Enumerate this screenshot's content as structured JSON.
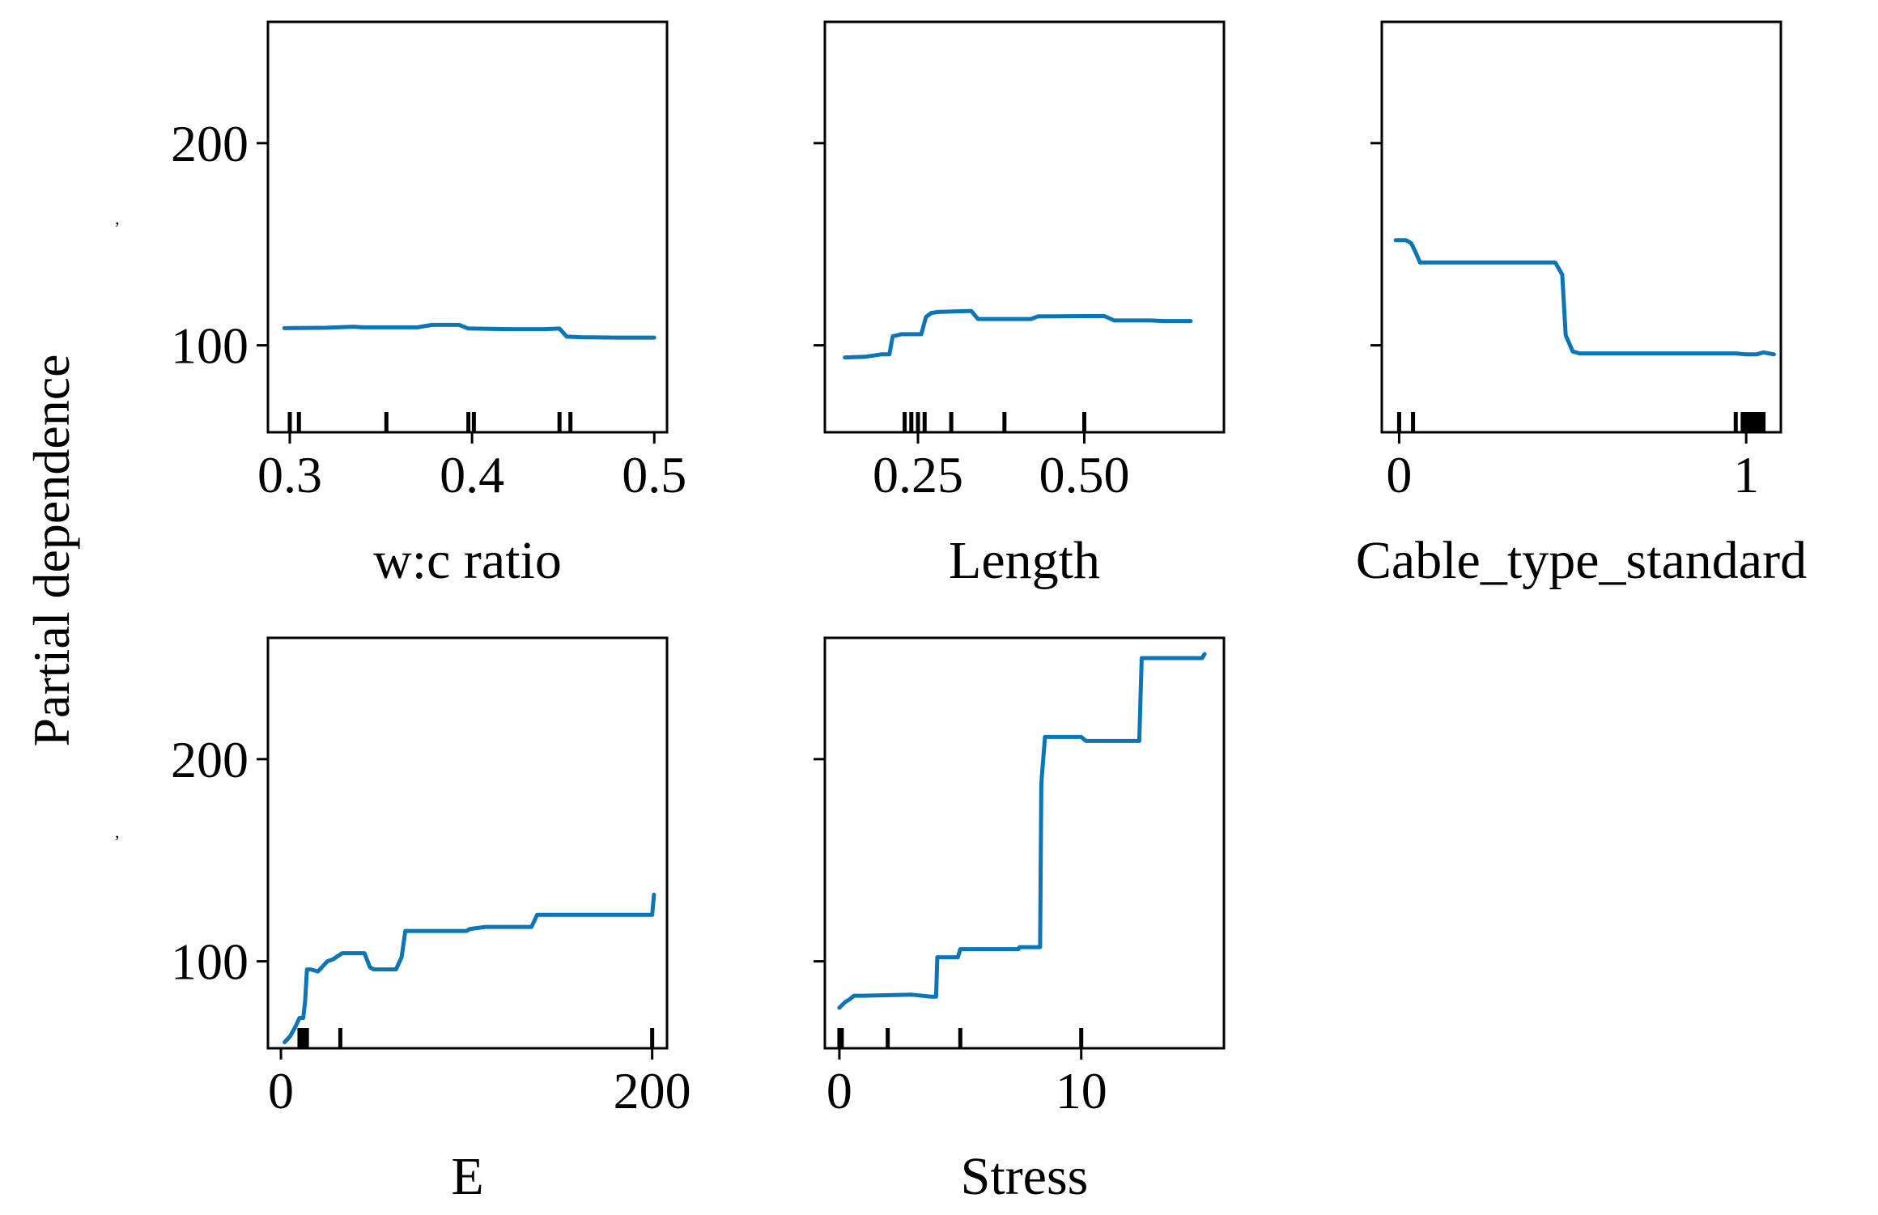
{
  "figure": {
    "ylabel": "Partial dependence",
    "line_color": "#0b75b5",
    "rug_color": "#000000"
  },
  "chart_data": [
    {
      "type": "line",
      "xlabel": "w:c ratio",
      "ylabel": "Partial dependence",
      "xlim": [
        0.288,
        0.507
      ],
      "ylim": [
        57,
        260
      ],
      "xticks": [
        0.3,
        0.4,
        0.5
      ],
      "xtick_labels": [
        "0.3",
        "0.4",
        "0.5"
      ],
      "yticks": [
        100,
        200
      ],
      "ytick_labels": [
        "100",
        "200"
      ],
      "show_yticklabels": true,
      "deciles": [
        0.3,
        0.305,
        0.353,
        0.398,
        0.401,
        0.448,
        0.454
      ],
      "series": [
        {
          "name": "pd",
          "x": [
            0.297,
            0.32,
            0.335,
            0.34,
            0.37,
            0.378,
            0.393,
            0.398,
            0.4,
            0.42,
            0.44,
            0.448,
            0.452,
            0.46,
            0.48,
            0.5
          ],
          "y": [
            108.5,
            108.7,
            109.2,
            108.9,
            108.9,
            110.1,
            110.1,
            108.3,
            108.3,
            108.0,
            108.0,
            108.3,
            104.3,
            104.0,
            103.8,
            103.8
          ]
        }
      ]
    },
    {
      "type": "line",
      "xlabel": "Length",
      "ylabel": "",
      "xlim": [
        0.11,
        0.71
      ],
      "ylim": [
        57,
        260
      ],
      "xticks": [
        0.25,
        0.5
      ],
      "xtick_labels": [
        "0.25",
        "0.50"
      ],
      "yticks": [
        100,
        200
      ],
      "ytick_labels": [
        "100",
        "200"
      ],
      "show_yticklabels": false,
      "deciles": [
        0.23,
        0.24,
        0.25,
        0.26,
        0.3,
        0.38,
        0.5
      ],
      "series": [
        {
          "name": "pd",
          "x": [
            0.14,
            0.17,
            0.195,
            0.207,
            0.212,
            0.225,
            0.255,
            0.262,
            0.27,
            0.28,
            0.33,
            0.34,
            0.42,
            0.43,
            0.53,
            0.545,
            0.6,
            0.62,
            0.66
          ],
          "y": [
            94,
            94.3,
            95.5,
            95.5,
            104.5,
            105.5,
            105.5,
            114,
            116,
            116.5,
            117,
            113,
            113,
            114.3,
            114.5,
            112.3,
            112.3,
            112,
            112
          ]
        }
      ]
    },
    {
      "type": "line",
      "xlabel": "Cable_type_standard",
      "ylabel": "",
      "xlim": [
        -0.05,
        1.1
      ],
      "ylim": [
        57,
        260
      ],
      "xticks": [
        0,
        1
      ],
      "xtick_labels": [
        "0",
        "1"
      ],
      "yticks": [
        100,
        200
      ],
      "ytick_labels": [
        "100",
        "200"
      ],
      "show_yticklabels": false,
      "deciles": [
        0.0,
        0.04,
        0.97,
        0.99,
        1.0,
        1.01,
        1.02,
        1.03,
        1.04,
        1.05
      ],
      "series": [
        {
          "name": "pd",
          "x": [
            -0.01,
            0.02,
            0.035,
            0.05,
            0.06,
            0.45,
            0.47,
            0.48,
            0.5,
            0.52,
            0.97,
            1.0,
            1.03,
            1.05,
            1.08
          ],
          "y": [
            152,
            152,
            150.5,
            145,
            141,
            141,
            135,
            105,
            97,
            96,
            96,
            95.5,
            95.5,
            96.5,
            95.5
          ]
        }
      ]
    },
    {
      "type": "line",
      "xlabel": "E",
      "ylabel": "Partial dependence",
      "xlim": [
        -7,
        208
      ],
      "ylim": [
        57,
        260
      ],
      "xticks": [
        0,
        200
      ],
      "xtick_labels": [
        "0",
        "200"
      ],
      "yticks": [
        100,
        200
      ],
      "ytick_labels": [
        "100",
        "200"
      ],
      "show_yticklabels": true,
      "deciles": [
        10,
        11,
        12,
        13,
        14,
        32,
        200
      ],
      "series": [
        {
          "name": "pd",
          "x": [
            2,
            5,
            8,
            10,
            12,
            13,
            14,
            16,
            20,
            25,
            28,
            33,
            45,
            48,
            50,
            62,
            65,
            67,
            100,
            102,
            110,
            135,
            138,
            200,
            201
          ],
          "y": [
            60,
            63,
            68,
            72,
            72,
            80,
            96,
            96,
            95,
            100,
            101,
            104,
            104,
            97,
            96,
            96,
            102,
            115,
            115,
            116,
            117,
            117,
            123,
            123,
            133
          ]
        }
      ]
    },
    {
      "type": "line",
      "xlabel": "Stress",
      "ylabel": "",
      "xlim": [
        -0.6,
        15.9
      ],
      "ylim": [
        57,
        260
      ],
      "xticks": [
        0,
        10
      ],
      "xtick_labels": [
        "0",
        "10"
      ],
      "yticks": [
        100,
        200
      ],
      "ytick_labels": [
        "100",
        "200"
      ],
      "show_yticklabels": false,
      "deciles": [
        0.0,
        0.05,
        0.1,
        2.0,
        5.0,
        10.0
      ],
      "series": [
        {
          "name": "pd",
          "x": [
            0.0,
            0.25,
            0.4,
            0.6,
            1.0,
            3.0,
            3.8,
            4.0,
            4.05,
            4.9,
            5.0,
            7.4,
            7.45,
            8.3,
            8.35,
            8.5,
            8.6,
            10.0,
            10.2,
            12.4,
            12.5,
            15.0,
            15.1
          ],
          "y": [
            77,
            80,
            81,
            83,
            83,
            83.5,
            82.5,
            82.5,
            102,
            102,
            106,
            106,
            107,
            107,
            188,
            211,
            211,
            211,
            209,
            209,
            250,
            250,
            252
          ]
        }
      ]
    }
  ]
}
